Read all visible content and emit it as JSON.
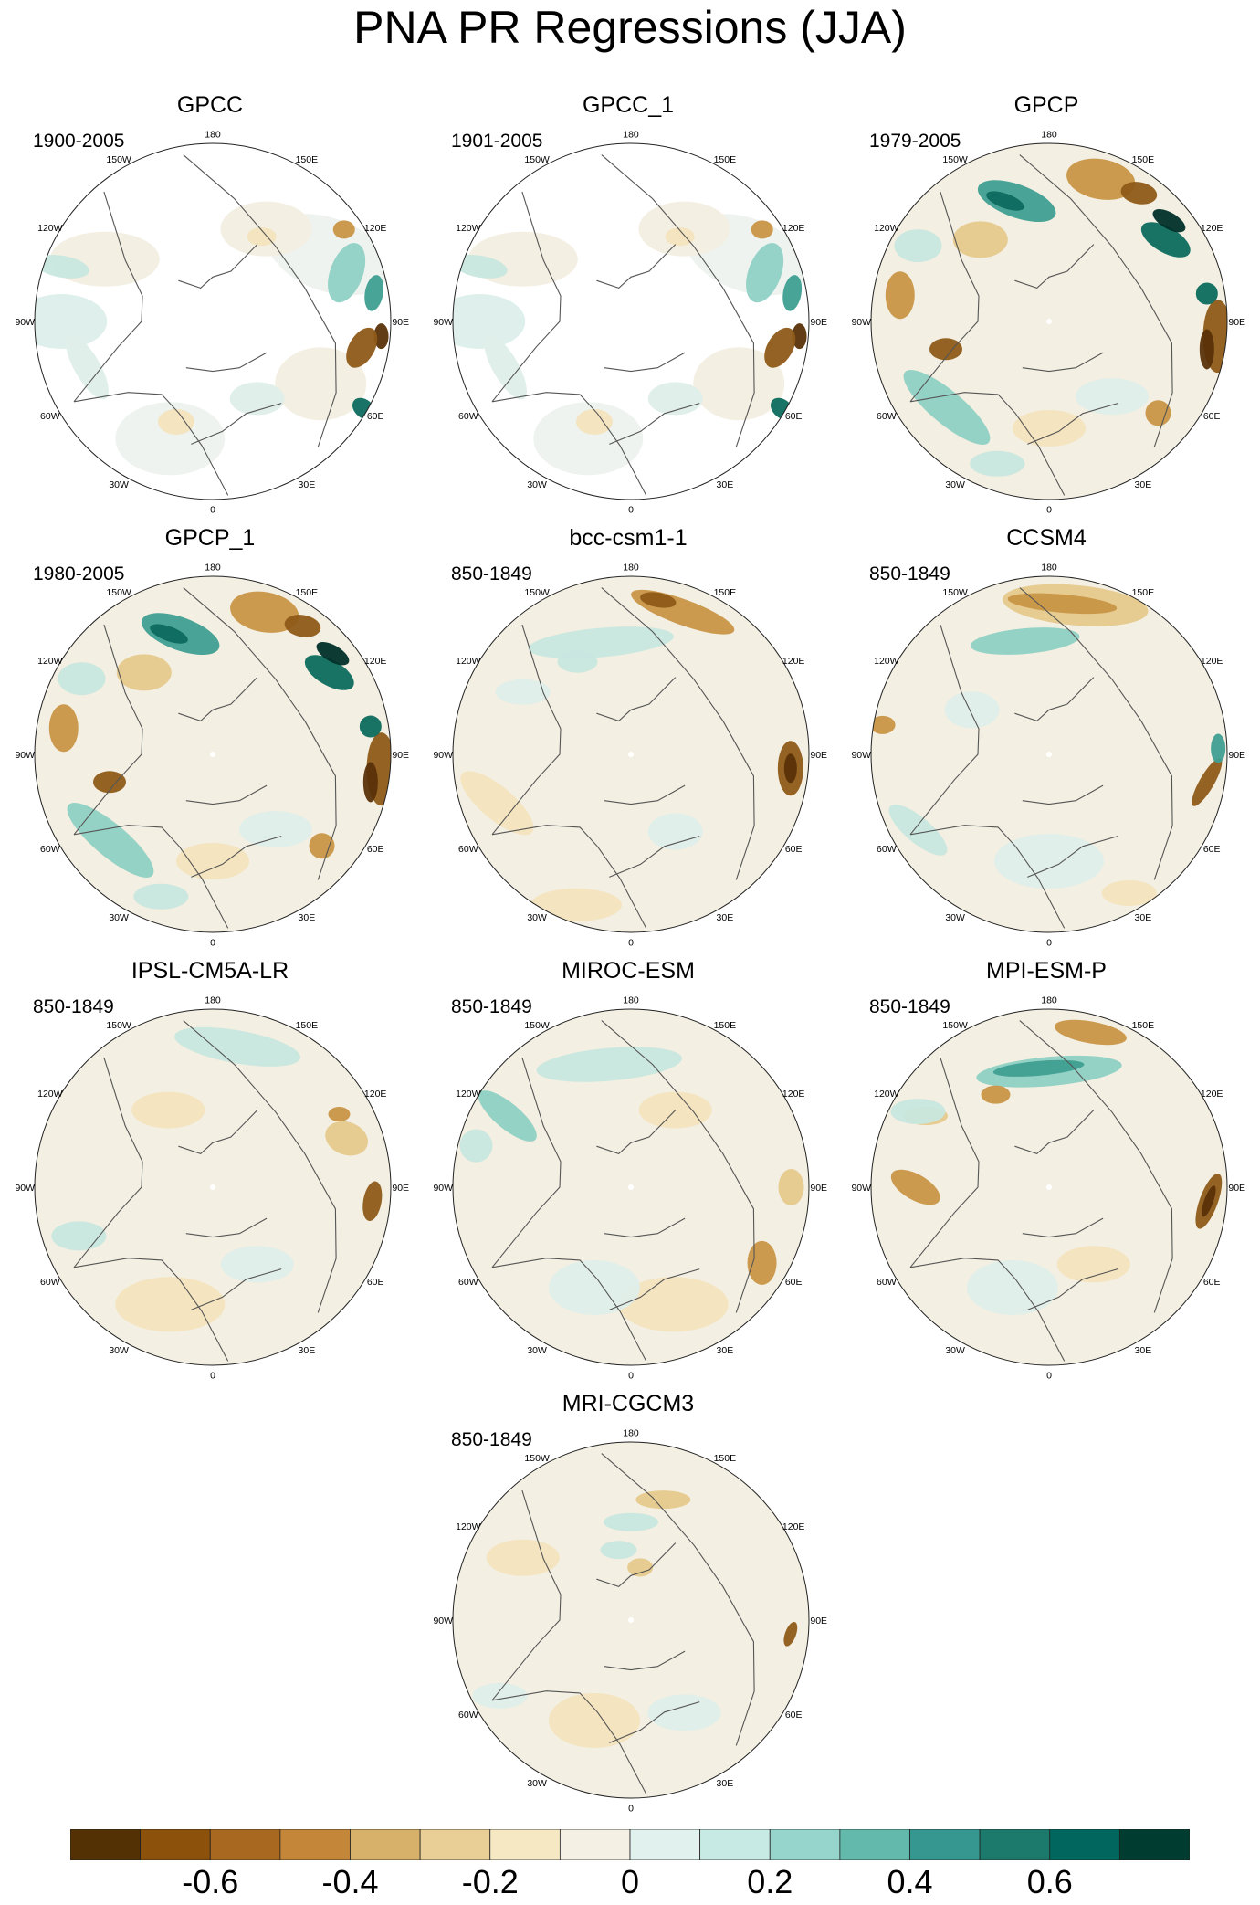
{
  "title": "PNA PR Regressions (JJA)",
  "longitude_labels": [
    "180",
    "150E",
    "120E",
    "90E",
    "60E",
    "30E",
    "0",
    "30W",
    "60W",
    "90W",
    "120W",
    "150W"
  ],
  "panels": [
    {
      "name": "GPCC",
      "period": "1900-2005",
      "kind": "obs-gpcc"
    },
    {
      "name": "GPCC_1",
      "period": "1901-2005",
      "kind": "obs-gpcc"
    },
    {
      "name": "GPCP",
      "period": "1979-2005",
      "kind": "obs-gpcp"
    },
    {
      "name": "GPCP_1",
      "period": "1980-2005",
      "kind": "obs-gpcp"
    },
    {
      "name": "bcc-csm1-1",
      "period": "850-1849",
      "kind": "model-bcc"
    },
    {
      "name": "CCSM4",
      "period": "850-1849",
      "kind": "model-ccsm4"
    },
    {
      "name": "IPSL-CM5A-LR",
      "period": "850-1849",
      "kind": "model-ipsl"
    },
    {
      "name": "MIROC-ESM",
      "period": "850-1849",
      "kind": "model-miroc"
    },
    {
      "name": "MPI-ESM-P",
      "period": "850-1849",
      "kind": "model-mpi"
    },
    {
      "name": "MRI-CGCM3",
      "period": "850-1849",
      "kind": "model-mri"
    }
  ],
  "colorbar": {
    "colors": [
      "#543005",
      "#8c510a",
      "#a9681f",
      "#c4873a",
      "#d7b06a",
      "#e9cf95",
      "#f6e8c3",
      "#f5f0e4",
      "#e0f1ee",
      "#c7eae5",
      "#95d5cb",
      "#64b9ad",
      "#35978f",
      "#1b7a6c",
      "#01665e",
      "#003c30"
    ],
    "labels": [
      "-0.6",
      "-0.4",
      "-0.2",
      "0",
      "0.2",
      "0.4",
      "0.6"
    ],
    "label_values": [
      -0.6,
      -0.4,
      -0.2,
      0,
      0.2,
      0.4,
      0.6
    ],
    "min": -0.8,
    "max": 0.8
  }
}
